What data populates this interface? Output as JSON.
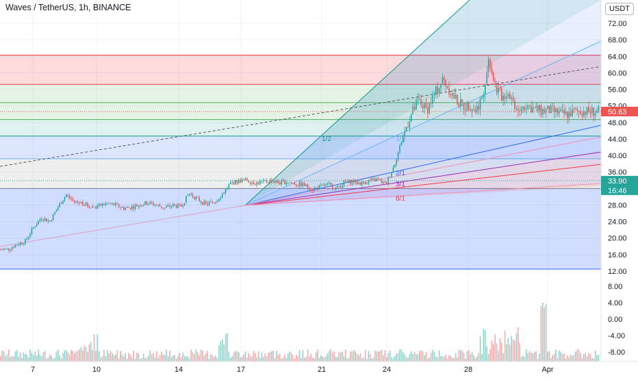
{
  "header": {
    "title": "Waves / TetherUS, 1h, BINANCE"
  },
  "toolbar": {
    "currency_button": "USDT"
  },
  "price_axis": {
    "ticks": [
      "72.00",
      "68.00",
      "64.00",
      "60.00",
      "56.00",
      "52.00",
      "48.00",
      "44.00",
      "40.00",
      "36.00",
      "28.00",
      "24.00",
      "20.00",
      "16.00",
      "12.00",
      "8.00",
      "4.00",
      "0.00",
      "-4.00",
      "-8.00"
    ]
  },
  "time_axis": {
    "ticks": [
      "7",
      "10",
      "14",
      "17",
      "21",
      "24",
      "28",
      "Apr"
    ]
  },
  "badges": {
    "last_price": "50.63",
    "level_price": "33.90",
    "countdown": "16:46"
  },
  "colors": {
    "up": "#26a69a",
    "down": "#ef5350",
    "fib_red": "#f23645",
    "fib_green": "#4caf50",
    "fib_teal": "#089981",
    "fib_blue": "#2962ff",
    "gann_green": "#089981",
    "gann_blue": "#2962ff",
    "gann_purple": "#9c27b0",
    "gann_red": "#f23645"
  },
  "gann_fan_labels": [
    "1/2",
    "1/1",
    "2/1",
    "3/1",
    "8/1"
  ],
  "chart_data": {
    "type": "line",
    "title": "Waves / TetherUS, 1h, BINANCE",
    "xlabel": "",
    "ylabel": "",
    "x_ticks": [
      "7",
      "10",
      "14",
      "17",
      "21",
      "24",
      "28",
      "Apr"
    ],
    "ylim": [
      12,
      74
    ],
    "series": [
      {
        "x": [
          0,
          0.5,
          1,
          1.5,
          2,
          2.5,
          3,
          3.5,
          4,
          4.5,
          5,
          5.5,
          6,
          6.5,
          7,
          7.5,
          8,
          8.5,
          9,
          9.5,
          10,
          10.5,
          11,
          11.5,
          12,
          12.5,
          13,
          13.5,
          14,
          14.5,
          15,
          15.5,
          16,
          16.5,
          17,
          17.5,
          18,
          18.5,
          19,
          19.5,
          20,
          20.5,
          21,
          21.5,
          22,
          22.5,
          23,
          23.5,
          24,
          24.5,
          25,
          25.5,
          26,
          26.5,
          27,
          27.5,
          28,
          28.3,
          28.6,
          29,
          29.4,
          29.8,
          30.2,
          30.6,
          31,
          31.4,
          31.8,
          32.1,
          32.5,
          33,
          33.5,
          34,
          34.5,
          35,
          35.5,
          36,
          36.5
        ],
        "values": [
          17.2,
          17.4,
          18.5,
          19.2,
          22.5,
          25.0,
          24.0,
          27.5,
          30.5,
          28.8,
          28.5,
          27.5,
          27.8,
          28.4,
          28.0,
          27.2,
          27.5,
          28.1,
          28.6,
          28.0,
          27.3,
          27.9,
          27.6,
          30.8,
          29.5,
          28.2,
          28.6,
          30.5,
          33.2,
          33.8,
          34.1,
          33.3,
          33.6,
          33.9,
          33.4,
          33.6,
          33.1,
          32.9,
          31.8,
          32.4,
          33.0,
          32.1,
          33.5,
          33.8,
          33.2,
          33.9,
          34.2,
          32.9,
          37.5,
          44.0,
          49.5,
          53.2,
          51.0,
          55.0,
          58.5,
          55.0,
          52.6,
          51.8,
          52.3,
          50.9,
          54.5,
          63.5,
          56.5,
          54.2,
          55.3,
          52.0,
          51.5,
          52.3,
          51.3,
          50.8,
          50.9,
          50.4,
          49.8,
          50.6,
          50.7,
          50.63,
          50.63
        ]
      }
    ],
    "fib_levels": [
      64.3,
      57.2,
      52.8,
      48.7,
      44.7,
      39.2,
      32.0,
      12.5
    ],
    "volume_axis_ticks": [
      8,
      4,
      0,
      -4,
      -8
    ]
  }
}
